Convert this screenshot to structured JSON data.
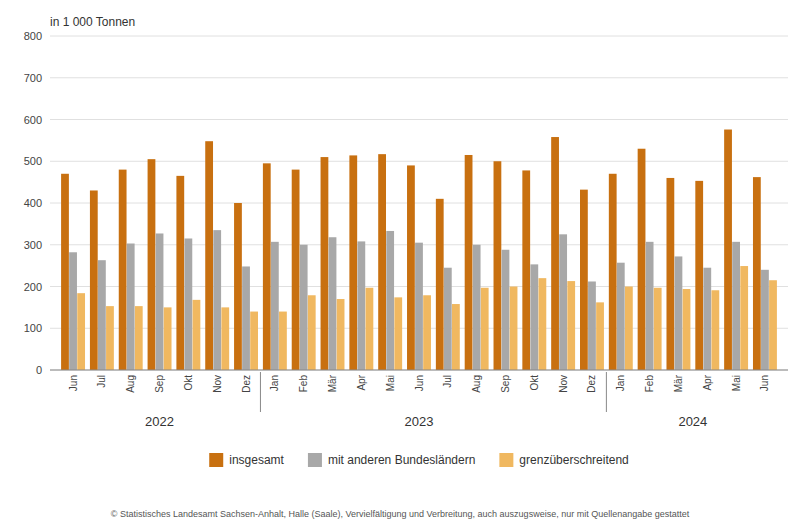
{
  "chart_data": {
    "type": "bar",
    "ylabel": "in 1 000 Tonnen",
    "categories": [
      "Jun",
      "Jul",
      "Aug",
      "Sep",
      "Okt",
      "Nov",
      "Dez",
      "Jan",
      "Feb",
      "Mär",
      "Apr",
      "Mai",
      "Jun",
      "Jul",
      "Aug",
      "Sep",
      "Okt",
      "Nov",
      "Dez",
      "Jan",
      "Feb",
      "Mär",
      "Apr",
      "Mai",
      "Jun"
    ],
    "series": [
      {
        "name": "insgesamt",
        "color": "#c87010",
        "values": [
          470,
          430,
          480,
          505,
          465,
          548,
          400,
          495,
          480,
          510,
          514,
          517,
          490,
          410,
          515,
          500,
          478,
          558,
          432,
          470,
          530,
          460,
          453,
          576,
          462
        ]
      },
      {
        "name": "mit anderen Bundesländern",
        "color": "#a8a8a8",
        "values": [
          282,
          263,
          303,
          327,
          315,
          335,
          248,
          307,
          300,
          318,
          308,
          333,
          305,
          245,
          300,
          288,
          253,
          325,
          212,
          257,
          307,
          272,
          245,
          307,
          240
        ]
      },
      {
        "name": "grenzüberschreitend",
        "color": "#f0b860",
        "values": [
          184,
          153,
          153,
          150,
          168,
          150,
          140,
          140,
          179,
          170,
          197,
          174,
          179,
          158,
          197,
          200,
          220,
          213,
          162,
          200,
          197,
          194,
          191,
          249,
          215
        ]
      }
    ],
    "annotations": [
      {
        "text": "2022",
        "x": 3.0
      },
      {
        "text": "2023",
        "x": 12.0
      },
      {
        "text": "2024",
        "x": 21.5
      }
    ],
    "separators": [
      6.5,
      18.5
    ],
    "ylim": [
      0,
      800
    ],
    "yticks": [
      0,
      100,
      200,
      300,
      400,
      500,
      600,
      700,
      800
    ],
    "grid": true,
    "legend": "bottom",
    "footnote": "© Statistisches Landesamt Sachsen-Anhalt, Halle (Saale), Vervielfältigung und Verbreitung, auch auszugsweise, nur mit Quellenangabe gestattet"
  }
}
